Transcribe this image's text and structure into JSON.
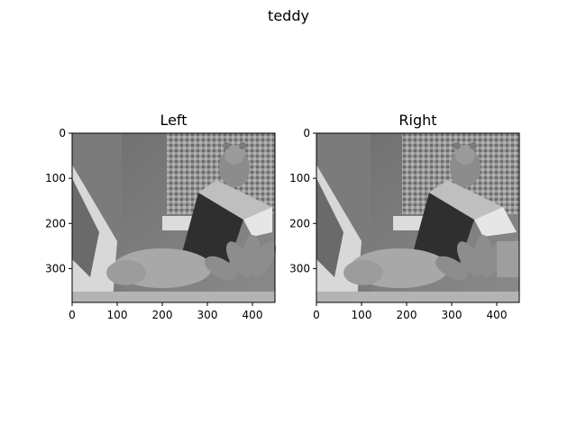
{
  "figure": {
    "title": "teddy"
  },
  "chart_data": [
    {
      "type": "heatmap",
      "title": "Left",
      "colormap": "gray",
      "image_description_subject": "teddy",
      "x_ticks": [
        0,
        100,
        200,
        300,
        400
      ],
      "y_ticks": [
        0,
        100,
        200,
        300
      ],
      "xlim": [
        0,
        450
      ],
      "ylim": [
        375,
        0
      ]
    },
    {
      "type": "heatmap",
      "title": "Right",
      "colormap": "gray",
      "image_description_subject": "teddy",
      "x_ticks": [
        0,
        100,
        200,
        300,
        400
      ],
      "y_ticks": [
        0,
        100,
        200,
        300
      ],
      "xlim": [
        0,
        450
      ],
      "ylim": [
        375,
        0
      ]
    }
  ]
}
